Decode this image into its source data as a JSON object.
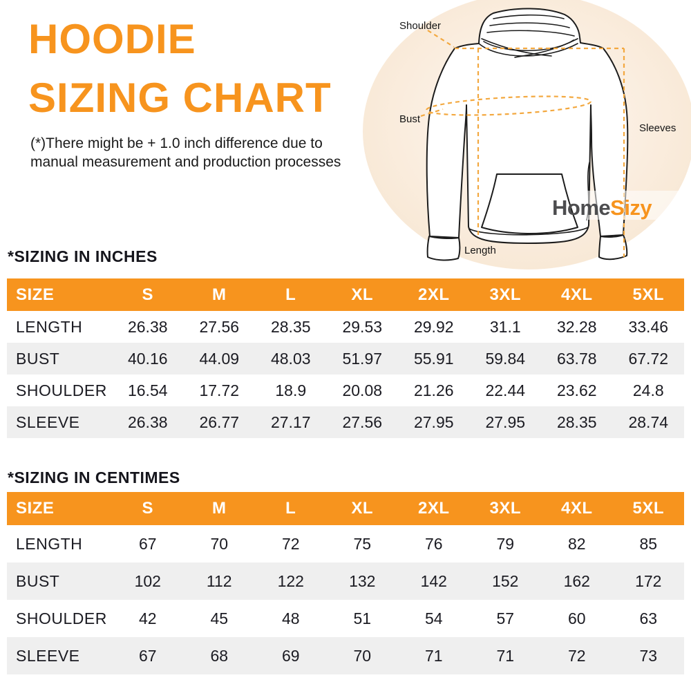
{
  "page": {
    "title_line1": "HOODIE",
    "title_line2": "SIZING CHART",
    "disclaimer_line1": "(*)There might be + 1.0 inch difference due to",
    "disclaimer_line2": "manual measurement and production processes"
  },
  "diagram": {
    "labels": {
      "shoulder": "Shoulder",
      "bust": "Bust",
      "sleeves": "Sleeves",
      "length": "Length"
    },
    "logo": {
      "part1": "Home",
      "part2": "Sizy"
    }
  },
  "colors": {
    "accent_orange": "#F7941E",
    "dash_orange": "#F3A83F",
    "row_alt_gray": "#EFEFEF",
    "logo_gray": "#4D4D4F",
    "circle_peach": "#FAEBDB",
    "text_dark": "#1B1B22"
  },
  "tables": {
    "inches": {
      "heading": "*SIZING IN INCHES",
      "columns": [
        "SIZE",
        "S",
        "M",
        "L",
        "XL",
        "2XL",
        "3XL",
        "4XL",
        "5XL"
      ],
      "rows": [
        {
          "label": "LENGTH",
          "values": [
            "26.38",
            "27.56",
            "28.35",
            "29.53",
            "29.92",
            "31.1",
            "32.28",
            "33.46"
          ]
        },
        {
          "label": "BUST",
          "values": [
            "40.16",
            "44.09",
            "48.03",
            "51.97",
            "55.91",
            "59.84",
            "63.78",
            "67.72"
          ]
        },
        {
          "label": "SHOULDER",
          "values": [
            "16.54",
            "17.72",
            "18.9",
            "20.08",
            "21.26",
            "22.44",
            "23.62",
            "24.8"
          ]
        },
        {
          "label": "SLEEVE",
          "values": [
            "26.38",
            "26.77",
            "27.17",
            "27.56",
            "27.95",
            "27.95",
            "28.35",
            "28.74"
          ]
        }
      ]
    },
    "centimeters": {
      "heading": "*SIZING IN CENTIMES",
      "columns": [
        "SIZE",
        "S",
        "M",
        "L",
        "XL",
        "2XL",
        "3XL",
        "4XL",
        "5XL"
      ],
      "rows": [
        {
          "label": "LENGTH",
          "values": [
            "67",
            "70",
            "72",
            "75",
            "76",
            "79",
            "82",
            "85"
          ]
        },
        {
          "label": "BUST",
          "values": [
            "102",
            "112",
            "122",
            "132",
            "142",
            "152",
            "162",
            "172"
          ]
        },
        {
          "label": "SHOULDER",
          "values": [
            "42",
            "45",
            "48",
            "51",
            "54",
            "57",
            "60",
            "63"
          ]
        },
        {
          "label": "SLEEVE",
          "values": [
            "67",
            "68",
            "69",
            "70",
            "71",
            "71",
            "72",
            "73"
          ]
        }
      ]
    }
  }
}
